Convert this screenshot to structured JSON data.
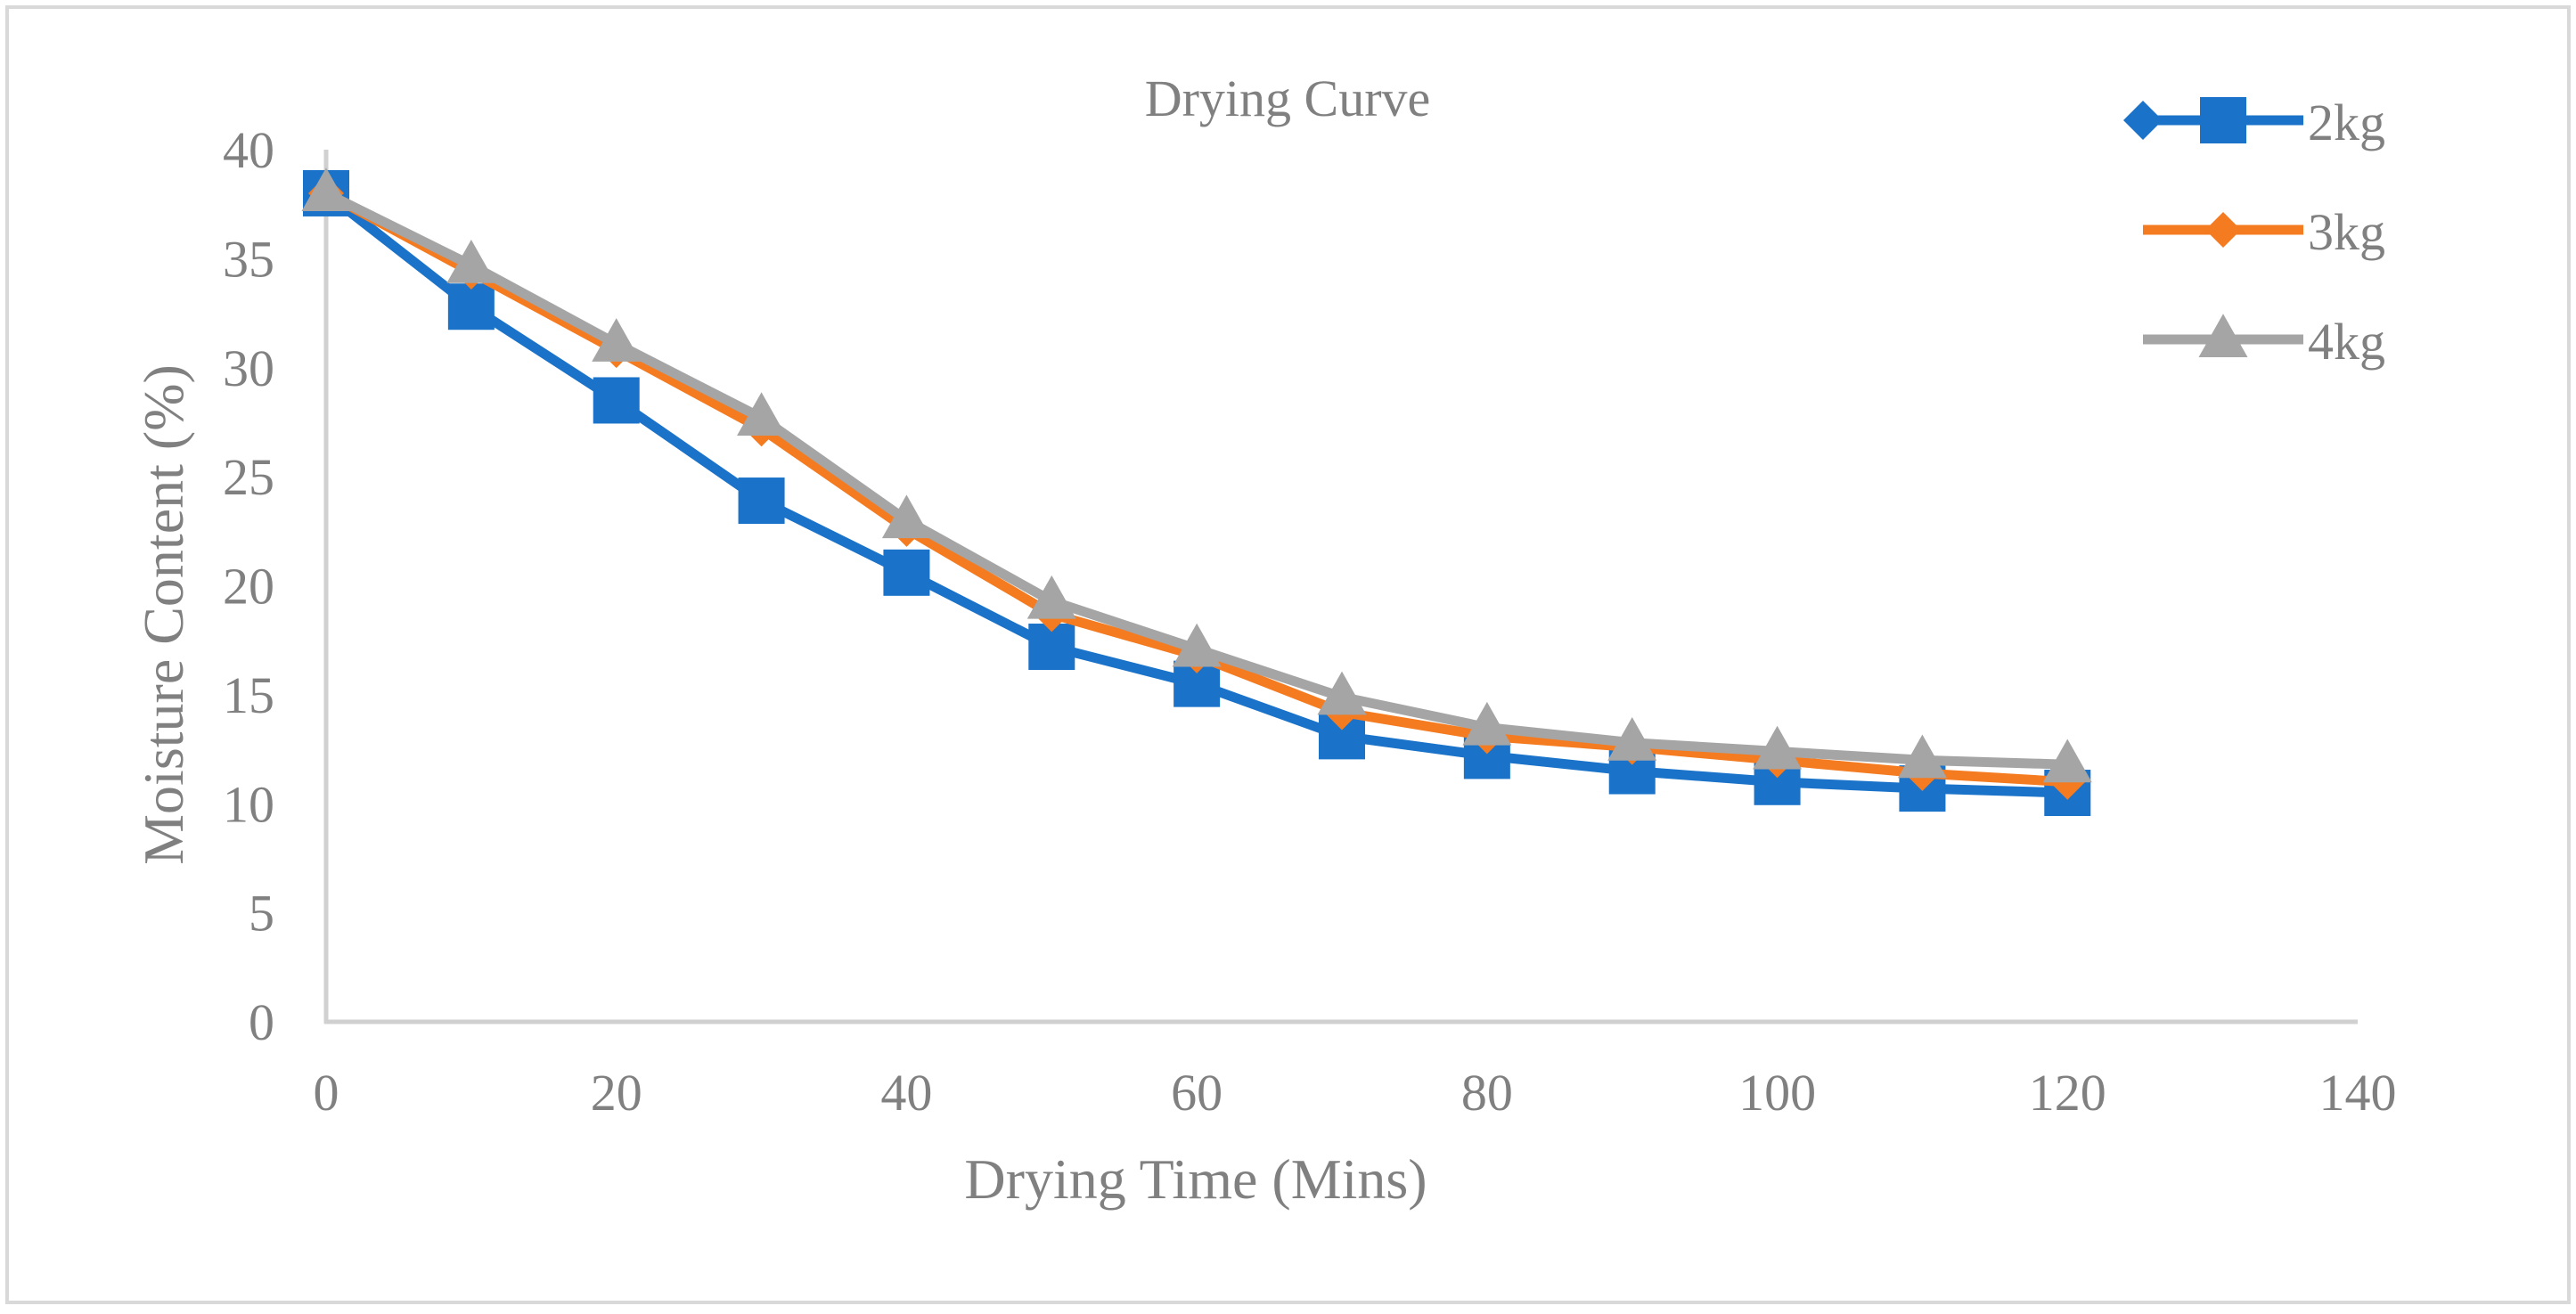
{
  "chart_data": {
    "type": "line",
    "title": "Drying Curve",
    "xlabel": "Drying Time (Mins)",
    "ylabel": "Moisture Content (%)",
    "xlim": [
      0,
      140
    ],
    "ylim": [
      0,
      40
    ],
    "x_ticks": [
      0,
      20,
      40,
      60,
      80,
      100,
      120,
      140
    ],
    "y_ticks": [
      0,
      5,
      10,
      15,
      20,
      25,
      30,
      35,
      40
    ],
    "grid": false,
    "legend_position": "top-right",
    "x": [
      0,
      10,
      20,
      30,
      40,
      50,
      60,
      70,
      80,
      90,
      100,
      110,
      120
    ],
    "series": [
      {
        "name": "2kg",
        "color": "#1a73c9",
        "marker": "square",
        "legend_marker": "diamond-and-square",
        "values": [
          38,
          32.8,
          28.5,
          23.9,
          20.6,
          17.2,
          15.5,
          13.1,
          12.2,
          11.5,
          11.0,
          10.7,
          10.5
        ]
      },
      {
        "name": "3kg",
        "color": "#f47b20",
        "marker": "diamond",
        "legend_marker": "diamond",
        "values": [
          38,
          34.4,
          30.8,
          27.2,
          22.6,
          18.7,
          16.8,
          14.2,
          13.1,
          12.6,
          12.0,
          11.4,
          11.0
        ]
      },
      {
        "name": "4kg",
        "color": "#a5a5a5",
        "marker": "triangle",
        "legend_marker": "triangle",
        "values": [
          38,
          34.7,
          31.1,
          27.7,
          23.0,
          19.3,
          17.1,
          14.9,
          13.5,
          12.8,
          12.4,
          12.0,
          11.8
        ]
      }
    ]
  }
}
